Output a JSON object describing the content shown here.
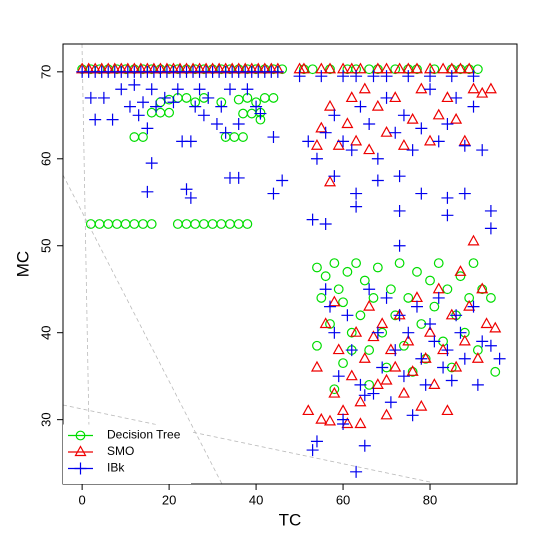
{
  "chart_data": {
    "type": "scatter",
    "x_label": "TC",
    "y_label": "MC",
    "xlim": [
      -4.4,
      100
    ],
    "ylim": [
      22.6,
      73.2
    ],
    "xticks": [
      0,
      20,
      40,
      60,
      80
    ],
    "yticks": [
      30,
      40,
      50,
      60,
      70
    ],
    "legend": "bottomleft",
    "series": [
      {
        "name": "Decision Tree",
        "color": "#00dd00",
        "marker": "circle",
        "x": [
          0,
          2,
          4,
          6,
          8,
          10,
          12,
          14,
          16,
          18,
          20,
          22,
          24,
          26,
          28,
          30,
          32,
          34,
          36,
          38,
          40,
          42,
          44,
          46,
          51,
          53,
          57,
          61,
          63,
          66,
          68,
          72,
          75,
          77,
          81,
          85,
          87,
          89,
          91,
          2,
          4,
          6,
          8,
          10,
          12,
          14,
          16,
          22,
          24,
          26,
          28,
          30,
          32,
          34,
          36,
          38,
          18,
          20,
          22,
          24,
          26,
          28,
          32,
          36,
          38,
          40,
          42,
          44,
          16,
          18,
          20,
          37,
          39,
          41,
          12,
          14,
          33,
          35,
          37,
          41,
          54,
          55,
          56,
          57,
          58,
          59,
          60,
          61,
          62,
          63,
          64,
          65,
          66,
          67,
          68,
          69,
          70,
          71,
          72,
          73,
          74,
          75,
          76,
          77,
          78,
          79,
          80,
          81,
          82,
          83,
          84,
          85,
          86,
          87,
          88,
          89,
          90,
          91,
          92,
          94,
          95,
          58,
          60,
          62,
          66,
          54
        ],
        "values": [
          70.3,
          70.3,
          70.3,
          70.3,
          70.3,
          70.3,
          70.3,
          70.3,
          70.3,
          70.3,
          70.3,
          70.3,
          70.3,
          70.3,
          70.3,
          70.3,
          70.3,
          70.3,
          70.3,
          70.3,
          70.3,
          70.3,
          70.3,
          70.3,
          70.3,
          70.3,
          70.3,
          70.3,
          70.3,
          70.3,
          70.3,
          70.3,
          70.3,
          70.3,
          70.3,
          70.3,
          70.3,
          70.3,
          70.3,
          52.5,
          52.5,
          52.5,
          52.5,
          52.5,
          52.5,
          52.5,
          52.5,
          52.5,
          52.5,
          52.5,
          52.5,
          52.5,
          52.5,
          52.5,
          52.5,
          52.5,
          66.5,
          66.8,
          67,
          67,
          66.5,
          67,
          66.5,
          66.8,
          67,
          66.5,
          67,
          67,
          65.3,
          65.3,
          65.3,
          65.2,
          65.2,
          65.3,
          62.5,
          62.5,
          62.5,
          62.5,
          62.5,
          64.5,
          47.5,
          44,
          46.5,
          41,
          48,
          45,
          43.5,
          47,
          40,
          48,
          42,
          46,
          38,
          44,
          47.5,
          40,
          36,
          45,
          42,
          48,
          38.5,
          44,
          35.5,
          47,
          41,
          37,
          46,
          43,
          48,
          39,
          45,
          36,
          42,
          46.5,
          40,
          44,
          48,
          38,
          45,
          44,
          35.5,
          33.5,
          36.5,
          38,
          34,
          38.5
        ]
      },
      {
        "name": "SMO",
        "color": "#ee0000",
        "marker": "triangle",
        "x": [
          0,
          1.5,
          3,
          4.5,
          6,
          7.5,
          9,
          10.5,
          12,
          13.5,
          15,
          16.5,
          18,
          19.5,
          21,
          22.5,
          24,
          25.5,
          27,
          28.5,
          30,
          31.5,
          33,
          34.5,
          36,
          37.5,
          39,
          40.5,
          42,
          43.5,
          45,
          50,
          51,
          55,
          57,
          60,
          62,
          64,
          68,
          70,
          73,
          75,
          77,
          80,
          83,
          85,
          87,
          89,
          55,
          57,
          59,
          61,
          62,
          63,
          65,
          66,
          68,
          70,
          72,
          74,
          76,
          78,
          80,
          82,
          84,
          86,
          88,
          90,
          92,
          94,
          57,
          54,
          54,
          55,
          56,
          57,
          58,
          59,
          60,
          61,
          62,
          63,
          64,
          65,
          66,
          67,
          68,
          69,
          70,
          71,
          72,
          73,
          74,
          75,
          76,
          77,
          78,
          79,
          80,
          81,
          82,
          83,
          84,
          85,
          86,
          87,
          88,
          89,
          90,
          91,
          92,
          93,
          95,
          52,
          64,
          70,
          58
        ],
        "values": [
          70.3,
          70.3,
          70.3,
          70.3,
          70.3,
          70.3,
          70.3,
          70.3,
          70.3,
          70.3,
          70.3,
          70.3,
          70.3,
          70.3,
          70.3,
          70.3,
          70.3,
          70.3,
          70.3,
          70.3,
          70.3,
          70.3,
          70.3,
          70.3,
          70.3,
          70.3,
          70.3,
          70.3,
          70.3,
          70.3,
          70.3,
          70.3,
          70.3,
          70.3,
          70.3,
          70.3,
          70.3,
          70.3,
          70.3,
          70.3,
          70.3,
          70.3,
          70.3,
          70.3,
          70.3,
          70.3,
          70.3,
          70.3,
          63.5,
          66,
          61.5,
          64,
          67,
          62,
          68,
          61,
          66,
          63,
          67,
          61.5,
          64.5,
          68,
          62,
          65,
          67,
          64.5,
          62,
          68,
          67.5,
          68,
          57.3,
          61.5,
          36,
          30,
          41,
          29.8,
          33,
          38,
          31,
          29.5,
          35,
          40,
          32,
          37,
          43,
          39.5,
          34,
          41,
          30.5,
          38,
          36,
          42,
          33,
          39,
          35.5,
          44,
          31.5,
          37,
          40,
          34,
          45,
          38,
          31,
          42,
          36,
          47,
          39,
          43,
          50.5,
          37,
          45,
          41,
          40.5,
          31,
          29.5,
          34.5,
          43.5
        ]
      },
      {
        "name": "IBk",
        "color": "#0000ee",
        "marker": "plus",
        "x": [
          0,
          1.5,
          3,
          4.5,
          6,
          7.5,
          9,
          10.5,
          12,
          13.5,
          15,
          16.5,
          18,
          19.5,
          21,
          22.5,
          24,
          25.5,
          27,
          28.5,
          30,
          31.5,
          33,
          34.5,
          36,
          37.5,
          39,
          40.5,
          42,
          43.5,
          45,
          50,
          55,
          60,
          63,
          67,
          70,
          75,
          80,
          85,
          90,
          2,
          3,
          5,
          7,
          9,
          11,
          12,
          13,
          14,
          15,
          16,
          17,
          19,
          21,
          22,
          23,
          25,
          26,
          27,
          28,
          29,
          31,
          32,
          33,
          34,
          36,
          38,
          40,
          41,
          44,
          15,
          16,
          24,
          25,
          34,
          36,
          44,
          46,
          52,
          54,
          56,
          58,
          60,
          62,
          64,
          66,
          68,
          70,
          72,
          74,
          76,
          78,
          80,
          82,
          84,
          86,
          88,
          90,
          92,
          53,
          56,
          58,
          63,
          63,
          68,
          73,
          73,
          78,
          84,
          84,
          88,
          94,
          94,
          73,
          53,
          54,
          56,
          57,
          58,
          59,
          60,
          61,
          62,
          63,
          64,
          65,
          66,
          67,
          68,
          69,
          70,
          71,
          72,
          73,
          74,
          75,
          76,
          77,
          78,
          79,
          80,
          81,
          82,
          83,
          84,
          85,
          86,
          87,
          88,
          90,
          91,
          92,
          94,
          96,
          60,
          65
        ],
        "values": [
          70,
          70,
          70,
          70,
          70,
          70,
          70,
          70,
          70,
          70,
          70,
          70,
          70,
          70,
          70,
          70,
          70,
          70,
          70,
          70,
          70,
          70,
          70,
          70,
          70,
          70,
          70,
          70,
          70,
          70,
          70,
          69.5,
          69.5,
          69.5,
          69.5,
          69.5,
          69.5,
          69.5,
          69.5,
          69.5,
          69.5,
          67,
          64.5,
          67,
          64.5,
          68,
          66,
          68.5,
          65,
          66.5,
          63.5,
          68,
          66,
          67,
          66.5,
          68,
          62,
          62,
          66,
          68,
          65,
          67,
          64,
          66,
          63,
          68,
          64,
          68,
          66,
          65.2,
          62.5,
          56.2,
          59.5,
          56.5,
          55.5,
          57.8,
          57.8,
          56,
          57.5,
          62,
          60,
          63,
          65,
          62,
          61,
          66,
          64,
          60,
          67,
          63,
          65,
          61,
          63.5,
          68,
          62,
          64,
          67,
          61.5,
          66,
          61,
          53,
          52.5,
          58,
          56,
          54.5,
          57.5,
          54,
          58,
          56,
          53.5,
          55.5,
          56,
          54,
          52,
          50,
          26.5,
          27.5,
          45,
          43,
          40,
          35,
          30,
          42,
          38,
          24,
          34,
          27,
          45,
          33,
          40,
          36,
          44,
          32,
          38,
          42,
          35,
          40,
          30.5,
          43,
          37,
          34,
          41,
          39,
          44,
          36,
          38,
          34.5,
          42,
          40,
          37,
          43,
          34,
          39,
          38.5,
          37,
          29.5,
          32.8
        ]
      }
    ]
  }
}
